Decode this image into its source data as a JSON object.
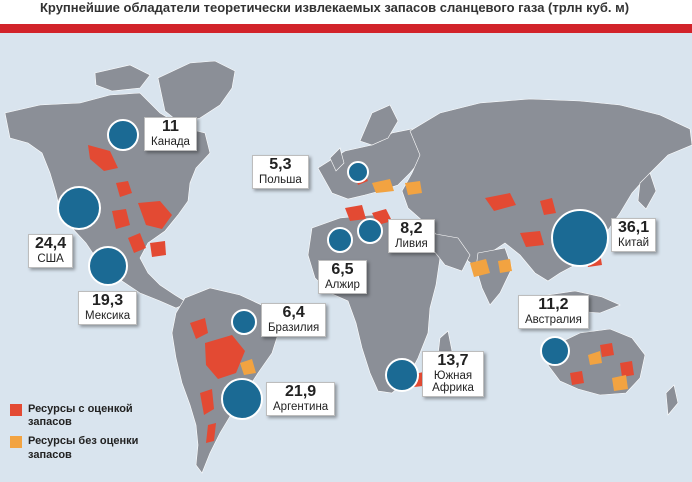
{
  "title": "Крупнейшие обладатели теоретически извлекаемых запасов сланцевого газа (трлн куб. м)",
  "colors": {
    "accent_bar": "#d2232a",
    "ocean": "#d9e4ee",
    "land": "#8b8f97",
    "assessed": "#e34a33",
    "unassessed": "#f2a341",
    "bubble": "#1b6a94"
  },
  "countries": [
    {
      "value": "11",
      "name": "Канада"
    },
    {
      "value": "24,4",
      "name": "США"
    },
    {
      "value": "19,3",
      "name": "Мексика"
    },
    {
      "value": "6,4",
      "name": "Бразилия"
    },
    {
      "value": "21,9",
      "name": "Аргентина"
    },
    {
      "value": "5,3",
      "name": "Польша"
    },
    {
      "value": "8,2",
      "name": "Ливия"
    },
    {
      "value": "6,5",
      "name": "Алжир"
    },
    {
      "value": "13,7",
      "name": "Южная Африка"
    },
    {
      "value": "36,1",
      "name": "Китай"
    },
    {
      "value": "11,2",
      "name": "Австралия"
    }
  ],
  "legend": {
    "assessed": "Ресурсы с оценкой запасов",
    "unassessed": "Ресурсы без оценки запасов"
  }
}
